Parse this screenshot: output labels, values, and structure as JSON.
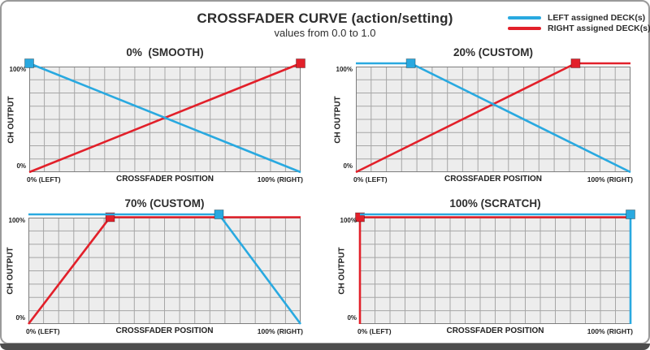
{
  "page": {
    "title": "CROSSFADER CURVE (action/setting)",
    "subtitle": "values from 0.0 to 1.0"
  },
  "legend": [
    {
      "label": "LEFT assigned DECK(s)",
      "color": "#29A9E0"
    },
    {
      "label": "RIGHT assigned DECK(s)",
      "color": "#E2202A"
    }
  ],
  "axis_labels": {
    "y_title": "CH OUTPUT",
    "x_title": "CROSSFADER POSITION",
    "y_max": "100%",
    "y_min": "0%",
    "x_min": "0% (LEFT)",
    "x_max": "100% (RIGHT)"
  },
  "colors": {
    "blue": "#29A9E0",
    "red": "#E2202A",
    "plot_bg": "#EDEDED",
    "grid_line": "#A6A6A6",
    "plot_border": "#7D7D7D"
  },
  "grid": {
    "cols": 18,
    "rows": 8
  },
  "chart_data": [
    {
      "type": "line",
      "title": "0%  (SMOOTH)",
      "xlabel": "CROSSFADER POSITION",
      "ylabel": "CH OUTPUT",
      "xlim": [
        0,
        1
      ],
      "ylim": [
        0,
        1
      ],
      "series": [
        {
          "name": "RIGHT assigned DECK(s)",
          "color_key": "red",
          "points": [
            [
              0,
              0
            ],
            [
              1,
              1
            ]
          ],
          "marker_at": [
            1,
            1
          ]
        },
        {
          "name": "LEFT assigned DECK(s)",
          "color_key": "blue",
          "points": [
            [
              0,
              1
            ],
            [
              1,
              0
            ]
          ],
          "marker_at": [
            0,
            1
          ]
        }
      ]
    },
    {
      "type": "line",
      "title": "20% (CUSTOM)",
      "xlabel": "CROSSFADER POSITION",
      "ylabel": "CH OUTPUT",
      "xlim": [
        0,
        1
      ],
      "ylim": [
        0,
        1
      ],
      "series": [
        {
          "name": "RIGHT assigned DECK(s)",
          "color_key": "red",
          "points": [
            [
              0,
              0
            ],
            [
              0.8,
              1
            ],
            [
              1,
              1
            ]
          ],
          "marker_at": [
            0.8,
            1
          ]
        },
        {
          "name": "LEFT assigned DECK(s)",
          "color_key": "blue",
          "points": [
            [
              0,
              1
            ],
            [
              0.2,
              1
            ],
            [
              1,
              0
            ]
          ],
          "marker_at": [
            0.2,
            1
          ]
        }
      ]
    },
    {
      "type": "line",
      "title": "70% (CUSTOM)",
      "xlabel": "CROSSFADER POSITION",
      "ylabel": "CH OUTPUT",
      "xlim": [
        0,
        1
      ],
      "ylim": [
        0,
        1
      ],
      "series": [
        {
          "name": "RIGHT assigned DECK(s)",
          "color_key": "red",
          "overlap_offset": true,
          "points": [
            [
              0,
              0
            ],
            [
              0.3,
              1
            ],
            [
              1,
              1
            ]
          ],
          "marker_at": [
            0.3,
            1
          ]
        },
        {
          "name": "LEFT assigned DECK(s)",
          "color_key": "blue",
          "points": [
            [
              0,
              1
            ],
            [
              0.7,
              1
            ],
            [
              1,
              0
            ]
          ],
          "marker_at": [
            0.7,
            1
          ]
        }
      ]
    },
    {
      "type": "line",
      "title": "100% (SCRATCH)",
      "xlabel": "CROSSFADER POSITION",
      "ylabel": "CH OUTPUT",
      "xlim": [
        0,
        1
      ],
      "ylim": [
        0,
        1
      ],
      "series": [
        {
          "name": "RIGHT assigned DECK(s)",
          "color_key": "red",
          "overlap_offset": true,
          "points": [
            [
              0,
              0
            ],
            [
              0,
              1
            ],
            [
              1,
              1
            ]
          ],
          "marker_at": [
            0,
            1
          ]
        },
        {
          "name": "LEFT assigned DECK(s)",
          "color_key": "blue",
          "points": [
            [
              0,
              1
            ],
            [
              1,
              1
            ],
            [
              1,
              0
            ]
          ],
          "marker_at": [
            1,
            1
          ]
        }
      ]
    }
  ]
}
